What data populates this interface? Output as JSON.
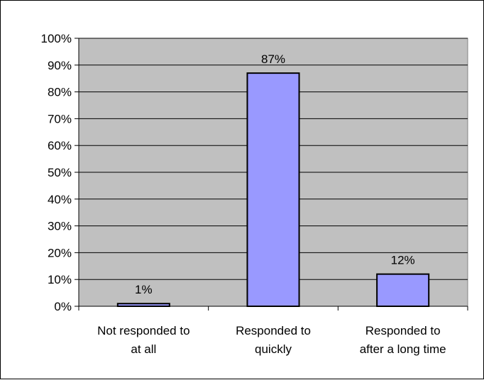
{
  "chart_data": {
    "type": "bar",
    "categories": [
      [
        "Not responded to",
        "at all"
      ],
      [
        "Responded to",
        "quickly"
      ],
      [
        "Responded to",
        "after a long time"
      ]
    ],
    "values": [
      1,
      87,
      12
    ],
    "data_labels": [
      "1%",
      "87%",
      "12%"
    ],
    "ylim": [
      0,
      100
    ],
    "yticks": [
      "0%",
      "10%",
      "20%",
      "30%",
      "40%",
      "50%",
      "60%",
      "70%",
      "80%",
      "90%",
      "100%"
    ],
    "grid": true,
    "legend": "none",
    "colors": {
      "plot_background": "#c0c0c0",
      "bar_fill": "#9999ff",
      "bar_stroke": "#000000",
      "gridline": "#000000"
    }
  }
}
